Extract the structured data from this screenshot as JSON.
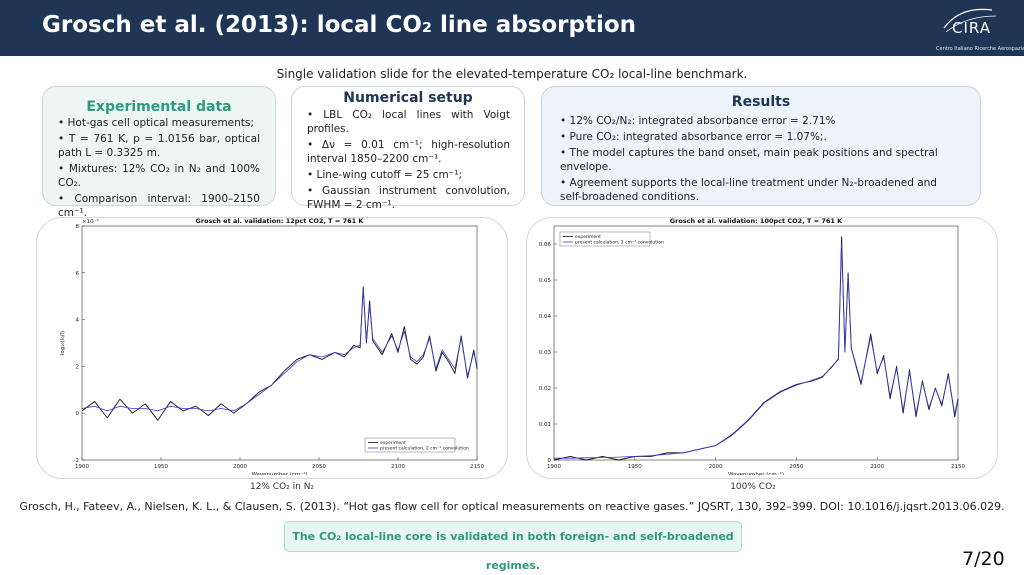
{
  "header": {
    "title": "Grosch et al. (2013): local CO₂ line absorption",
    "logo_text": "CIRA",
    "logo_subtitle": "Centro Italiano Ricerche Aerospaziali",
    "background": "#1e3556"
  },
  "subtitle": "Single validation slide for the elevated-temperature CO₂ local-line benchmark.",
  "cards": {
    "experimental": {
      "title": "Experimental data",
      "bullets": [
        "• Hot-gas cell optical measurements;",
        "• T = 761 K, p = 1.0156 bar, optical path L = 0.3325 m.",
        "• Mixtures: 12% CO₂ in N₂ and 100% CO₂.",
        "• Comparison interval: 1900–2150 cm⁻¹."
      ]
    },
    "numerical": {
      "title": "Numerical setup",
      "bullets": [
        "• LBL CO₂ local lines with Voigt profiles.",
        "• Δν = 0.01 cm⁻¹; high-resolution interval 1850–2200 cm⁻¹.",
        "• Line-wing cutoff = 25 cm⁻¹;",
        "• Gaussian instrument convolution, FWHM = 2 cm⁻¹."
      ]
    },
    "results": {
      "title": "Results",
      "bullets": [
        "• 12% CO₂/N₂: integrated absorbance error = 2.71%",
        "• Pure CO₂: integrated absorbance error = 1.07%;.",
        "• The model captures the band onset, main peak positions and spectral envelope.",
        "• Agreement supports the local-line treatment under N₂-broadened and self-broadened conditions."
      ]
    }
  },
  "colors": {
    "accent": "#2e9a7d",
    "experiment": "#111111",
    "model": "#3a3acf"
  },
  "chart_data": [
    {
      "type": "line",
      "title": "Grosch et al. validation: 12pct CO2, T = 761 K",
      "xlabel": "Wavenumber (cm⁻¹)",
      "ylabel": "log₁₀(I₀/I)",
      "y_exponent": "×10⁻³",
      "xlim": [
        1900,
        2150
      ],
      "ylim": [
        -2,
        8
      ],
      "x_ticks": [
        "1900",
        "1950",
        "2000",
        "2050",
        "2100",
        "2150"
      ],
      "y_ticks": [
        "-2",
        "0",
        "2",
        "4",
        "6",
        "8"
      ],
      "legend": "bottom-right",
      "caption": "12% CO₂ in N₂",
      "series": [
        {
          "name": "experiment",
          "color": "#111111",
          "x": [
            1900,
            1908,
            1916,
            1924,
            1932,
            1940,
            1948,
            1956,
            1964,
            1972,
            1980,
            1988,
            1996,
            2004,
            2012,
            2020,
            2028,
            2036,
            2044,
            2052,
            2060,
            2066,
            2072,
            2076,
            2078,
            2080,
            2082,
            2084,
            2090,
            2096,
            2100,
            2104,
            2108,
            2112,
            2116,
            2120,
            2124,
            2128,
            2132,
            2136,
            2140,
            2144,
            2148,
            2150
          ],
          "values": [
            0.1,
            0.5,
            -0.2,
            0.6,
            0.0,
            0.4,
            -0.3,
            0.5,
            0.1,
            0.3,
            -0.1,
            0.4,
            0.0,
            0.4,
            0.9,
            1.2,
            1.8,
            2.3,
            2.5,
            2.3,
            2.6,
            2.4,
            2.9,
            2.8,
            5.4,
            3.0,
            4.8,
            3.1,
            2.5,
            3.4,
            2.6,
            3.7,
            2.3,
            2.1,
            2.4,
            3.3,
            1.8,
            2.6,
            2.2,
            1.7,
            3.3,
            1.5,
            2.7,
            1.9
          ]
        },
        {
          "name": "present calculation, 2 cm⁻¹ convolution",
          "color": "#3a3acf",
          "x": [
            1900,
            1908,
            1916,
            1924,
            1932,
            1940,
            1948,
            1956,
            1964,
            1972,
            1980,
            1988,
            1996,
            2004,
            2012,
            2020,
            2028,
            2036,
            2044,
            2052,
            2060,
            2066,
            2072,
            2076,
            2078,
            2080,
            2082,
            2084,
            2090,
            2096,
            2100,
            2104,
            2108,
            2112,
            2116,
            2120,
            2124,
            2128,
            2132,
            2136,
            2140,
            2144,
            2148,
            2150
          ],
          "values": [
            0.2,
            0.3,
            0.1,
            0.3,
            0.2,
            0.2,
            0.1,
            0.3,
            0.2,
            0.2,
            0.1,
            0.2,
            0.1,
            0.4,
            0.8,
            1.2,
            1.7,
            2.2,
            2.5,
            2.4,
            2.6,
            2.5,
            2.8,
            2.9,
            5.3,
            3.1,
            4.6,
            3.2,
            2.6,
            3.3,
            2.7,
            3.5,
            2.4,
            2.2,
            2.5,
            3.2,
            1.9,
            2.7,
            2.3,
            1.9,
            3.2,
            1.6,
            2.6,
            2.0
          ]
        }
      ]
    },
    {
      "type": "line",
      "title": "Grosch et al. validation: 100pct CO2, T = 761 K",
      "xlabel": "Wavenumber (cm⁻¹)",
      "ylabel": "log₁₀(I₀/I)",
      "xlim": [
        1900,
        2150
      ],
      "ylim": [
        0,
        0.065
      ],
      "x_ticks": [
        "1900",
        "1950",
        "2000",
        "2050",
        "2100",
        "2150"
      ],
      "y_ticks": [
        "0",
        "0.01",
        "0.02",
        "0.03",
        "0.04",
        "0.05",
        "0.06"
      ],
      "legend": "top-left",
      "caption": "100% CO₂",
      "series": [
        {
          "name": "experiment",
          "color": "#111111",
          "x": [
            1900,
            1910,
            1920,
            1930,
            1940,
            1950,
            1960,
            1970,
            1980,
            1990,
            2000,
            2010,
            2020,
            2030,
            2040,
            2050,
            2060,
            2066,
            2072,
            2076,
            2078,
            2080,
            2082,
            2084,
            2090,
            2096,
            2100,
            2104,
            2108,
            2112,
            2116,
            2120,
            2124,
            2128,
            2132,
            2136,
            2140,
            2144,
            2148,
            2150
          ],
          "values": [
            0.0,
            0.001,
            0.0,
            0.001,
            0.0,
            0.001,
            0.001,
            0.002,
            0.002,
            0.003,
            0.004,
            0.007,
            0.011,
            0.016,
            0.019,
            0.021,
            0.022,
            0.023,
            0.026,
            0.028,
            0.062,
            0.03,
            0.052,
            0.031,
            0.021,
            0.035,
            0.024,
            0.029,
            0.017,
            0.026,
            0.013,
            0.025,
            0.012,
            0.022,
            0.014,
            0.02,
            0.015,
            0.024,
            0.012,
            0.017
          ]
        },
        {
          "name": "present calculation, 2 cm⁻¹ convolution",
          "color": "#3a3acf",
          "x": [
            1900,
            1910,
            1920,
            1930,
            1940,
            1950,
            1960,
            1970,
            1980,
            1990,
            2000,
            2010,
            2020,
            2030,
            2040,
            2050,
            2060,
            2066,
            2072,
            2076,
            2078,
            2080,
            2082,
            2084,
            2090,
            2096,
            2100,
            2104,
            2108,
            2112,
            2116,
            2120,
            2124,
            2128,
            2132,
            2136,
            2140,
            2144,
            2148,
            2150
          ],
          "values": [
            0.0005,
            0.0005,
            0.0006,
            0.0007,
            0.0008,
            0.001,
            0.0012,
            0.0016,
            0.002,
            0.003,
            0.004,
            0.0068,
            0.0108,
            0.0158,
            0.0188,
            0.0208,
            0.0222,
            0.0232,
            0.0258,
            0.0282,
            0.06,
            0.0302,
            0.051,
            0.0312,
            0.0215,
            0.0342,
            0.0245,
            0.0285,
            0.0178,
            0.0255,
            0.0138,
            0.0245,
            0.0128,
            0.0218,
            0.0145,
            0.0198,
            0.0155,
            0.0235,
            0.0128,
            0.0172
          ]
        }
      ]
    }
  ],
  "captions": {
    "left": "12% CO₂ in N₂",
    "right": "100% CO₂"
  },
  "reference": "Grosch, H., Fateev, A., Nielsen, K. L., & Clausen, S. (2013). “Hot gas flow cell for optical measurements on reactive gases.” JQSRT, 130, 392–399. DOI: 10.1016/j.jqsrt.2013.06.029.",
  "takeaway": "The CO₂ local-line core is validated in both foreign- and self-broadened regimes.",
  "page_number": "7/20"
}
